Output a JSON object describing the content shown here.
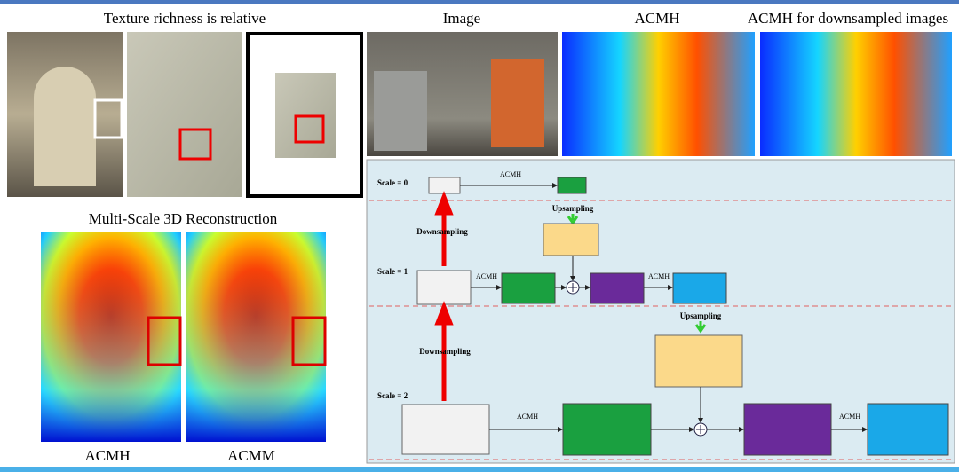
{
  "left_panel": {
    "title": "Texture richness is relative",
    "reconstruction_title": "Multi-Scale 3D Reconstruction",
    "labels": [
      "ACMH",
      "ACMM"
    ]
  },
  "top_right": {
    "labels": [
      "Image",
      "ACMH",
      "ACMH for downsampled images"
    ]
  },
  "diagram": {
    "scales": [
      "Scale = 0",
      "Scale = 1",
      "Scale = 2"
    ],
    "edge_labels": [
      "ACMH",
      "ACMH",
      "ACMH",
      "ACMH",
      "ACMH"
    ],
    "upsampling": [
      "Upsampling",
      "Upsampling"
    ],
    "downsampling": [
      "Downsampling",
      "Downsampling"
    ]
  }
}
